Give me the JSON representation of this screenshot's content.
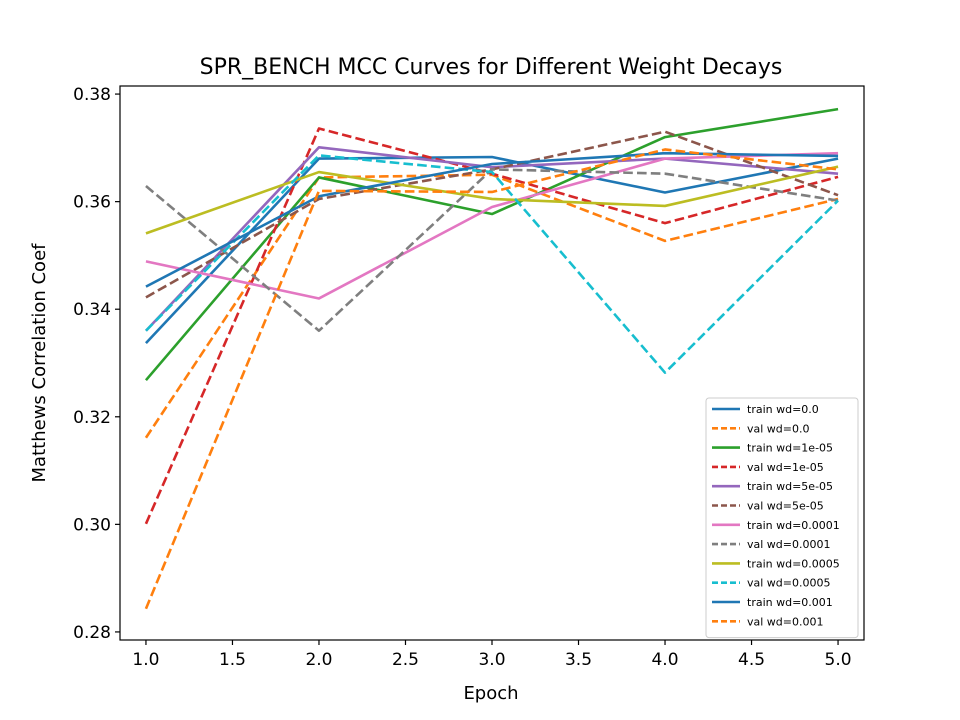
{
  "chart_data": {
    "type": "line",
    "title": "SPR_BENCH MCC Curves for Different Weight Decays",
    "xlabel": "Epoch",
    "ylabel": "Matthews Correlation Coef",
    "xlim": [
      0.85,
      5.15
    ],
    "ylim": [
      0.2785,
      0.3815
    ],
    "xticks": [
      "1.0",
      "1.5",
      "2.0",
      "2.5",
      "3.0",
      "3.5",
      "4.0",
      "4.5",
      "5.0"
    ],
    "yticks": [
      "0.28",
      "0.30",
      "0.32",
      "0.34",
      "0.36",
      "0.38"
    ],
    "grid": false,
    "legend_position": "lower-right",
    "x": [
      1,
      2,
      3,
      4,
      5
    ],
    "series": [
      {
        "name": "train wd=0.0",
        "color": "#1f77b4",
        "dash": false,
        "values": [
          0.3337,
          0.368,
          0.3683,
          0.3617,
          0.368
        ]
      },
      {
        "name": "val wd=0.0",
        "color": "#ff7f0e",
        "dash": true,
        "values": [
          0.3161,
          0.3645,
          0.365,
          0.3527,
          0.3605
        ]
      },
      {
        "name": "train wd=1e-05",
        "color": "#2ca02c",
        "dash": false,
        "values": [
          0.3268,
          0.3645,
          0.3577,
          0.372,
          0.3772
        ]
      },
      {
        "name": "val wd=1e-05",
        "color": "#d62728",
        "dash": true,
        "values": [
          0.3001,
          0.3736,
          0.3652,
          0.356,
          0.3646
        ]
      },
      {
        "name": "train wd=5e-05",
        "color": "#9467bd",
        "dash": false,
        "values": [
          0.336,
          0.3701,
          0.3664,
          0.368,
          0.3652
        ]
      },
      {
        "name": "val wd=5e-05",
        "color": "#8c564b",
        "dash": true,
        "values": [
          0.3422,
          0.3605,
          0.366,
          0.373,
          0.3612
        ]
      },
      {
        "name": "train wd=0.0001",
        "color": "#e377c2",
        "dash": false,
        "values": [
          0.3489,
          0.342,
          0.359,
          0.368,
          0.369
        ]
      },
      {
        "name": "val wd=0.0001",
        "color": "#7f7f7f",
        "dash": true,
        "values": [
          0.3629,
          0.336,
          0.366,
          0.3652,
          0.3602
        ]
      },
      {
        "name": "train wd=0.0005",
        "color": "#bcbd22",
        "dash": false,
        "values": [
          0.3541,
          0.3655,
          0.3605,
          0.3592,
          0.3665
        ]
      },
      {
        "name": "val wd=0.0005",
        "color": "#17becf",
        "dash": true,
        "values": [
          0.336,
          0.3686,
          0.3655,
          0.3282,
          0.3602
        ]
      },
      {
        "name": "train wd=0.001",
        "color": "#1f77b4",
        "dash": false,
        "values": [
          0.3442,
          0.361,
          0.367,
          0.369,
          0.3685
        ]
      },
      {
        "name": "val wd=0.001",
        "color": "#ff7f0e",
        "dash": true,
        "values": [
          0.2843,
          0.362,
          0.3618,
          0.3697,
          0.366
        ]
      }
    ]
  }
}
